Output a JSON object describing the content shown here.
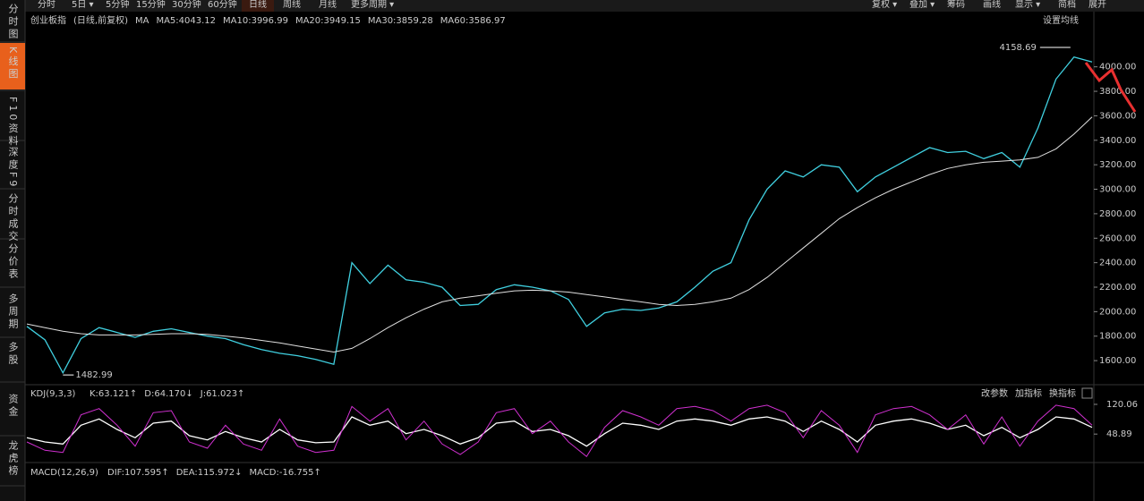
{
  "toolbar": {
    "left": [
      "分时",
      "5日 ▾",
      "5分钟",
      "15分钟",
      "30分钟",
      "60分钟",
      "日线",
      "周线",
      "月线",
      "更多周期 ▾"
    ],
    "right": [
      "复权 ▾",
      "叠加 ▾",
      "筹码",
      "画线",
      "显示 ▾",
      "简档",
      "展开"
    ]
  },
  "sidebar": [
    "分时图",
    "K线图",
    "F10资料",
    "深度F9",
    "分时成交",
    "分价表",
    "多周期",
    "多股",
    "资金",
    "龙虎榜"
  ],
  "legend": {
    "name": "创业板指",
    "mode": "(日线,前复权)",
    "ma": "MA",
    "items": [
      {
        "text": "MA5:4043.12",
        "color": "#ffffff"
      },
      {
        "text": "MA10:3996.99",
        "color": "#f0e000"
      },
      {
        "text": "MA20:3949.15",
        "color": "#e040e0"
      },
      {
        "text": "MA30:3859.28",
        "color": "#30d030"
      },
      {
        "text": "MA60:3586.97",
        "color": "#e0e0e0"
      }
    ],
    "settings": "设置均线"
  },
  "chart_data": {
    "type": "line",
    "ylim": [
      1440,
      4290
    ],
    "yticks": [
      {
        "value": 4000,
        "label": "4000.00"
      },
      {
        "value": 3800,
        "label": "3800.00"
      },
      {
        "value": 3600,
        "label": "3600.00"
      },
      {
        "value": 3400,
        "label": "3400.00"
      },
      {
        "value": 3200,
        "label": "3200.00"
      },
      {
        "value": 3000,
        "label": "3000.00"
      },
      {
        "value": 2800,
        "label": "2800.00"
      },
      {
        "value": 2600,
        "label": "2600.00"
      },
      {
        "value": 2400,
        "label": "2400.00"
      },
      {
        "value": 2200,
        "label": "2200.00"
      },
      {
        "value": 2000,
        "label": "2000.00"
      },
      {
        "value": 1800,
        "label": "1800.00"
      },
      {
        "value": 1600,
        "label": "1600.00"
      }
    ],
    "series": [
      {
        "name": "收盘",
        "color": "#40d0e0",
        "values": [
          1880,
          1770,
          1500,
          1780,
          1870,
          1830,
          1790,
          1840,
          1860,
          1830,
          1800,
          1780,
          1730,
          1690,
          1660,
          1640,
          1610,
          1570,
          2400,
          2230,
          2380,
          2260,
          2240,
          2200,
          2050,
          2060,
          2180,
          2220,
          2200,
          2170,
          2100,
          1880,
          1990,
          2020,
          2010,
          2030,
          2080,
          2200,
          2330,
          2400,
          2750,
          3000,
          3150,
          3100,
          3200,
          3180,
          2980,
          3100,
          3180,
          3260,
          3340,
          3300,
          3310,
          3250,
          3300,
          3180,
          3500,
          3900,
          4080,
          4040
        ]
      },
      {
        "name": "MA60",
        "color": "#e0e0e0",
        "values": [
          1900,
          1870,
          1840,
          1820,
          1810,
          1810,
          1810,
          1815,
          1820,
          1820,
          1815,
          1800,
          1785,
          1765,
          1745,
          1720,
          1695,
          1670,
          1700,
          1780,
          1870,
          1950,
          2020,
          2080,
          2110,
          2130,
          2150,
          2170,
          2175,
          2170,
          2160,
          2140,
          2120,
          2100,
          2080,
          2060,
          2050,
          2060,
          2080,
          2110,
          2180,
          2280,
          2400,
          2520,
          2640,
          2760,
          2850,
          2930,
          3000,
          3060,
          3120,
          3170,
          3200,
          3220,
          3230,
          3240,
          3260,
          3330,
          3450,
          3590
        ]
      }
    ],
    "annotations": [
      {
        "text": "4158.69",
        "value": 4158.69,
        "index": 58
      },
      {
        "text": "1482.99",
        "value": 1482.99,
        "index": 2
      }
    ]
  },
  "kdj_data": {
    "type": "line",
    "title": "KDJ(9,3,3)",
    "labels": [
      {
        "text": "K:63.121↑",
        "color": "#ffffff"
      },
      {
        "text": "D:64.170↓",
        "color": "#f0e000"
      },
      {
        "text": "J:61.023↑",
        "color": "#e040e0"
      }
    ],
    "buttons": [
      "改参数",
      "加指标",
      "换指标"
    ],
    "ylim": [
      -15,
      135
    ],
    "yticks": [
      {
        "value": 120.06,
        "label": "120.06"
      },
      {
        "value": 48.89,
        "label": "48.89"
      }
    ],
    "series": [
      {
        "name": "K",
        "color": "#ffffff",
        "values": [
          40,
          30,
          25,
          70,
          85,
          60,
          40,
          75,
          80,
          45,
          35,
          55,
          40,
          30,
          60,
          35,
          28,
          30,
          90,
          70,
          80,
          50,
          60,
          45,
          25,
          40,
          75,
          80,
          55,
          60,
          45,
          20,
          50,
          75,
          70,
          60,
          80,
          85,
          80,
          70,
          85,
          90,
          80,
          55,
          80,
          60,
          30,
          70,
          80,
          85,
          75,
          60,
          70,
          45,
          65,
          40,
          60,
          90,
          85,
          65
        ]
      },
      {
        "name": "J",
        "color": "#d030d0",
        "values": [
          30,
          10,
          5,
          95,
          110,
          70,
          20,
          100,
          105,
          30,
          15,
          70,
          25,
          10,
          85,
          20,
          5,
          10,
          115,
          80,
          110,
          35,
          80,
          25,
          0,
          30,
          100,
          110,
          50,
          80,
          30,
          -5,
          65,
          105,
          90,
          70,
          110,
          115,
          105,
          80,
          110,
          118,
          100,
          40,
          105,
          70,
          5,
          95,
          110,
          115,
          95,
          60,
          95,
          25,
          90,
          20,
          80,
          118,
          110,
          70
        ]
      }
    ]
  },
  "macd_data": {
    "title": "MACD(12,26,9)",
    "labels": [
      {
        "text": "DIF:107.595↑",
        "color": "#ffffff"
      },
      {
        "text": "DEA:115.972↓",
        "color": "#f0e000"
      },
      {
        "text": "MACD:-16.755↑",
        "color": "#e040e0"
      }
    ]
  }
}
